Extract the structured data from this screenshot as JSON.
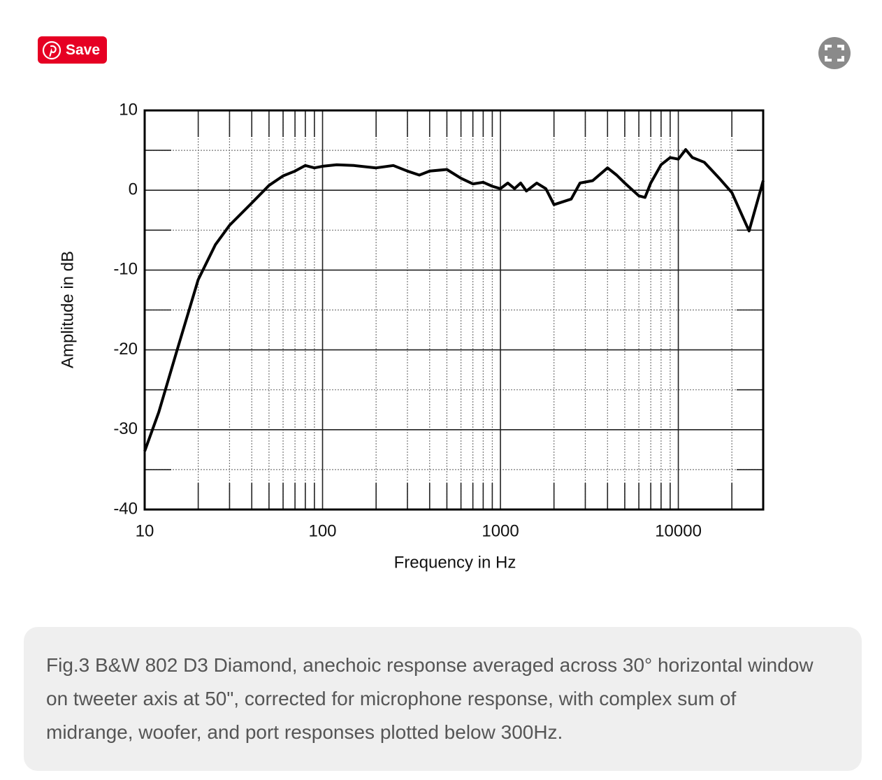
{
  "save_button": {
    "label": "Save"
  },
  "chart_data": {
    "type": "line",
    "xlabel": "Frequency in Hz",
    "ylabel": "Amplitude in dB",
    "xscale": "log",
    "grid": true,
    "color": "#000000",
    "xlim": [
      10,
      30000
    ],
    "ylim": [
      -40,
      10
    ],
    "xticks": [
      10,
      100,
      1000,
      10000
    ],
    "yticks": [
      -40,
      -30,
      -20,
      -10,
      0,
      10
    ],
    "x": [
      10,
      12,
      15,
      20,
      25,
      30,
      40,
      50,
      60,
      70,
      80,
      90,
      100,
      120,
      150,
      200,
      250,
      300,
      350,
      400,
      500,
      600,
      700,
      800,
      900,
      1000,
      1100,
      1200,
      1300,
      1400,
      1600,
      1800,
      2000,
      2500,
      2800,
      3300,
      4000,
      4500,
      5000,
      6000,
      6500,
      7000,
      8000,
      9000,
      10000,
      11000,
      12000,
      14000,
      17000,
      20000,
      25000,
      30000
    ],
    "values": [
      -32.7,
      -27.8,
      -20.5,
      -11.2,
      -6.8,
      -4.4,
      -1.6,
      0.6,
      1.8,
      2.4,
      3.1,
      2.8,
      3.0,
      3.2,
      3.1,
      2.8,
      3.1,
      2.4,
      1.9,
      2.4,
      2.6,
      1.5,
      0.8,
      1.0,
      0.5,
      0.2,
      0.9,
      0.2,
      0.9,
      -0.1,
      0.9,
      0.2,
      -1.8,
      -1.1,
      0.9,
      1.2,
      2.8,
      1.9,
      0.9,
      -0.7,
      -0.9,
      0.9,
      3.2,
      4.1,
      3.9,
      5.1,
      4.1,
      3.5,
      1.5,
      -0.3,
      -5.1,
      1.2
    ]
  },
  "caption": "Fig.3 B&W 802 D3 Diamond, anechoic response averaged across 30° horizontal window on tweeter axis at 50\", corrected for microphone response, with complex sum of midrange, woofer, and port responses plotted below 300Hz."
}
